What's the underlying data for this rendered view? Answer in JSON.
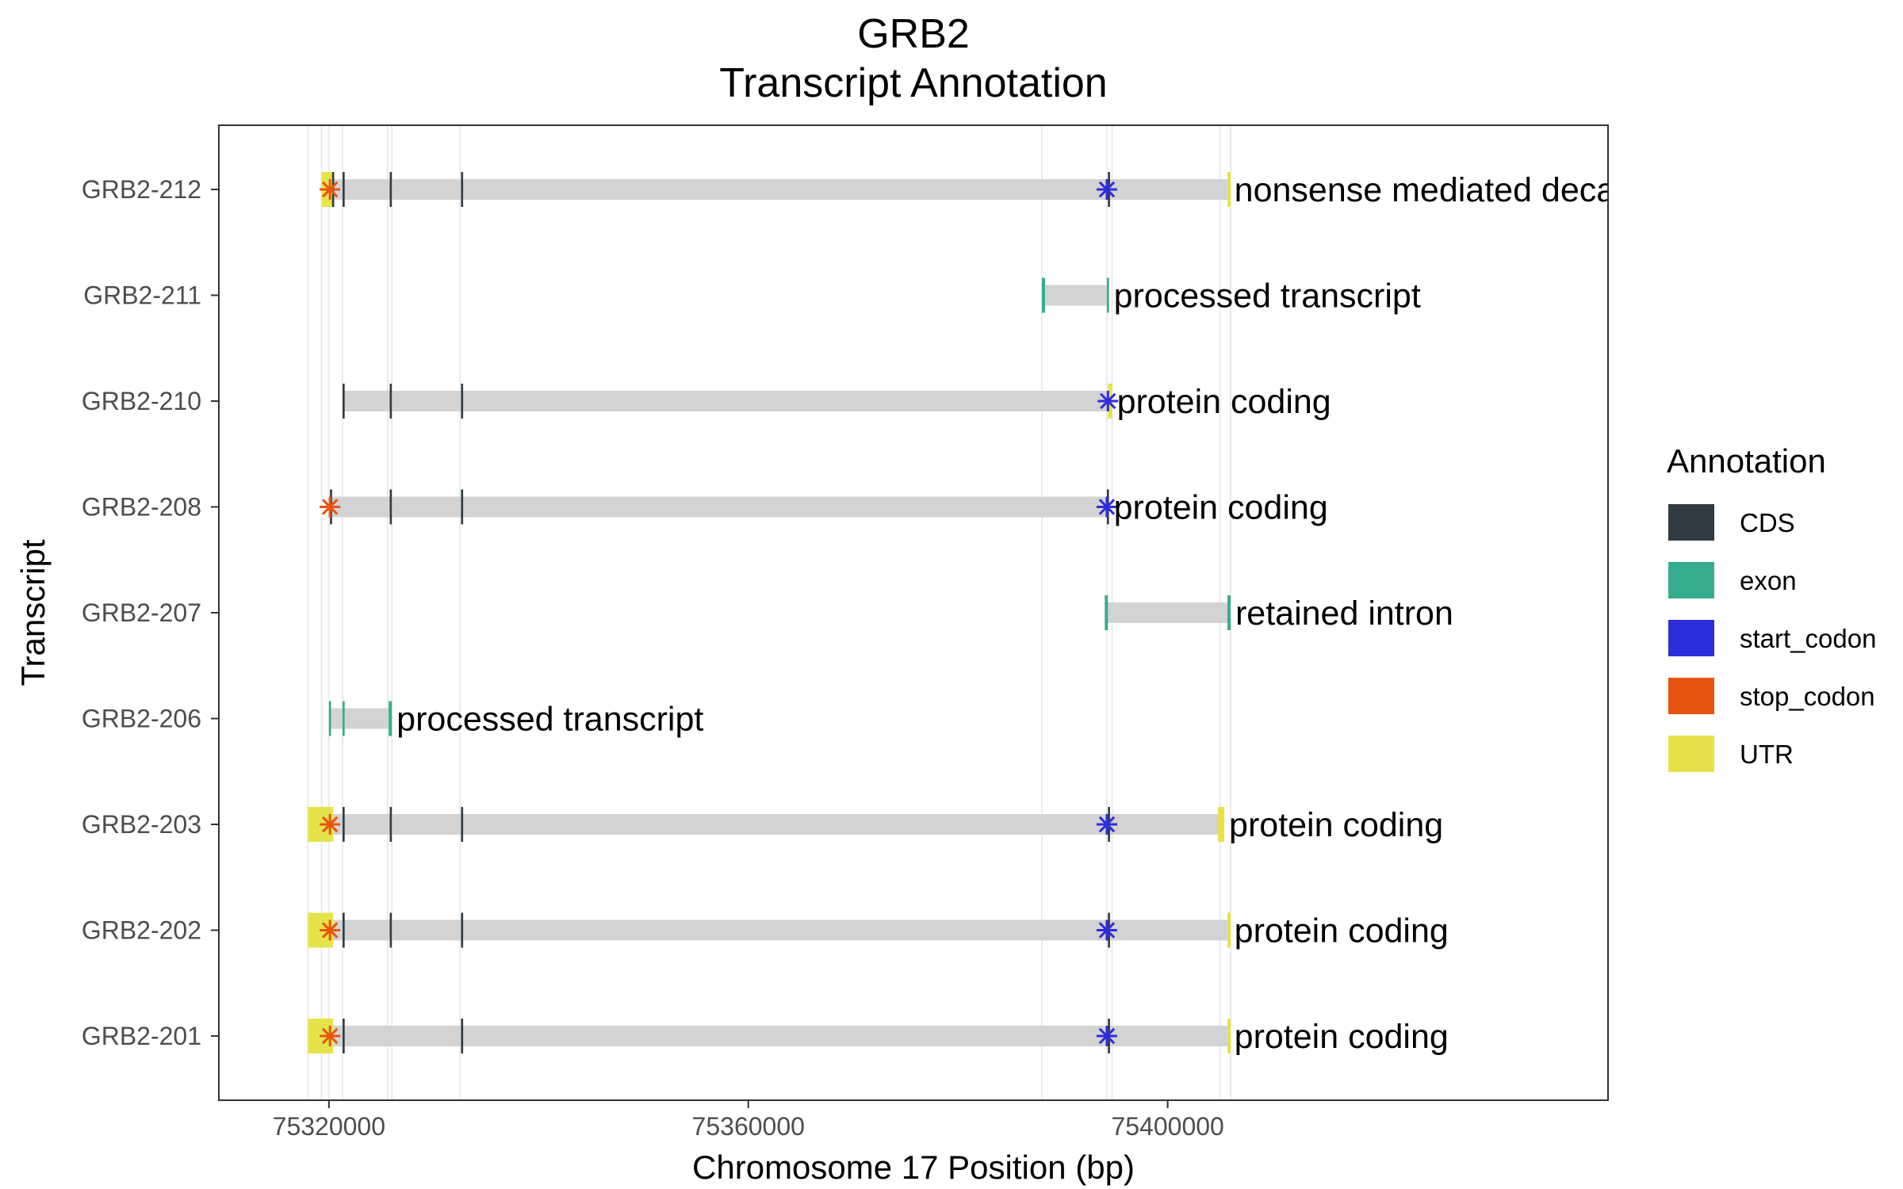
{
  "chart_data": {
    "type": "gene-track",
    "title": "GRB2",
    "subtitle": "Transcript Annotation",
    "xlabel": "Chromosome 17 Position (bp)",
    "ylabel": "Transcript",
    "xlim": [
      75309500,
      75442000
    ],
    "x_ticks": [
      "75320000",
      "75360000",
      "75400000"
    ],
    "x_tick_values": [
      75320000,
      75360000,
      75400000
    ],
    "grid_major_x": [
      75318000,
      75319300,
      75320000,
      75321300,
      75325600,
      75326000,
      75332500,
      75388000,
      75394200,
      75394700,
      75405000,
      75406000
    ],
    "legend": {
      "title": "Annotation",
      "placement": "right",
      "items": [
        {
          "label": "CDS",
          "color": "#2F3C45"
        },
        {
          "label": "exon",
          "color": "#35AD8F"
        },
        {
          "label": "start_codon",
          "color": "#2D2DDB"
        },
        {
          "label": "stop_codon",
          "color": "#E8550F"
        },
        {
          "label": "UTR",
          "color": "#E6E34A"
        }
      ]
    },
    "transcripts": [
      {
        "name": "GRB2-212",
        "biotype": "nonsense mediated decay",
        "start": 75319300,
        "end": 75405900,
        "features": [
          {
            "type": "UTR",
            "start": 75319300,
            "end": 75320400
          },
          {
            "type": "CDS",
            "start": 75320300,
            "end": 75320500
          },
          {
            "type": "CDS",
            "start": 75321300,
            "end": 75321500
          },
          {
            "type": "CDS",
            "start": 75325800,
            "end": 75326000
          },
          {
            "type": "CDS",
            "start": 75332600,
            "end": 75332800
          },
          {
            "type": "CDS",
            "start": 75394300,
            "end": 75394500
          },
          {
            "type": "UTR",
            "start": 75405700,
            "end": 75405900
          }
        ],
        "stop_codon": 75320100,
        "start_codon": 75394200
      },
      {
        "name": "GRB2-211",
        "biotype": "processed transcript",
        "start": 75388000,
        "end": 75394400,
        "features": [
          {
            "type": "exon",
            "start": 75388000,
            "end": 75388300
          },
          {
            "type": "exon",
            "start": 75394200,
            "end": 75394400
          }
        ]
      },
      {
        "name": "GRB2-210",
        "biotype": "protein coding",
        "start": 75321300,
        "end": 75394700,
        "features": [
          {
            "type": "CDS",
            "start": 75321300,
            "end": 75321500
          },
          {
            "type": "CDS",
            "start": 75325800,
            "end": 75326000
          },
          {
            "type": "CDS",
            "start": 75332600,
            "end": 75332800
          },
          {
            "type": "UTR",
            "start": 75394300,
            "end": 75394700
          }
        ],
        "start_codon": 75394300
      },
      {
        "name": "GRB2-208",
        "biotype": "protein coding",
        "start": 75320000,
        "end": 75394400,
        "features": [
          {
            "type": "CDS",
            "start": 75320100,
            "end": 75320300
          },
          {
            "type": "CDS",
            "start": 75325800,
            "end": 75326000
          },
          {
            "type": "CDS",
            "start": 75332600,
            "end": 75332800
          },
          {
            "type": "CDS",
            "start": 75394200,
            "end": 75394400
          }
        ],
        "stop_codon": 75320100,
        "start_codon": 75394200
      },
      {
        "name": "GRB2-207",
        "biotype": "retained intron",
        "start": 75394000,
        "end": 75406000,
        "features": [
          {
            "type": "exon",
            "start": 75394000,
            "end": 75394300
          },
          {
            "type": "exon",
            "start": 75405700,
            "end": 75406000
          }
        ]
      },
      {
        "name": "GRB2-206",
        "biotype": "processed transcript",
        "start": 75320000,
        "end": 75326000,
        "features": [
          {
            "type": "exon",
            "start": 75320000,
            "end": 75320200
          },
          {
            "type": "exon",
            "start": 75321300,
            "end": 75321500
          },
          {
            "type": "exon",
            "start": 75325700,
            "end": 75326000
          }
        ]
      },
      {
        "name": "GRB2-203",
        "biotype": "protein coding",
        "start": 75318000,
        "end": 75405400,
        "features": [
          {
            "type": "UTR",
            "start": 75318000,
            "end": 75320400
          },
          {
            "type": "CDS",
            "start": 75321300,
            "end": 75321500
          },
          {
            "type": "CDS",
            "start": 75325800,
            "end": 75326000
          },
          {
            "type": "CDS",
            "start": 75332600,
            "end": 75332800
          },
          {
            "type": "CDS",
            "start": 75394300,
            "end": 75394500
          },
          {
            "type": "UTR",
            "start": 75404800,
            "end": 75405400
          }
        ],
        "stop_codon": 75320100,
        "start_codon": 75394200
      },
      {
        "name": "GRB2-202",
        "biotype": "protein coding",
        "start": 75318000,
        "end": 75405900,
        "features": [
          {
            "type": "UTR",
            "start": 75318000,
            "end": 75320400
          },
          {
            "type": "CDS",
            "start": 75321300,
            "end": 75321500
          },
          {
            "type": "CDS",
            "start": 75325800,
            "end": 75326000
          },
          {
            "type": "CDS",
            "start": 75332600,
            "end": 75332800
          },
          {
            "type": "CDS",
            "start": 75394300,
            "end": 75394500
          },
          {
            "type": "UTR",
            "start": 75405700,
            "end": 75405900
          }
        ],
        "stop_codon": 75320100,
        "start_codon": 75394200
      },
      {
        "name": "GRB2-201",
        "biotype": "protein coding",
        "start": 75318000,
        "end": 75405900,
        "features": [
          {
            "type": "UTR",
            "start": 75318000,
            "end": 75320400
          },
          {
            "type": "CDS",
            "start": 75321300,
            "end": 75321500
          },
          {
            "type": "CDS",
            "start": 75332600,
            "end": 75332800
          },
          {
            "type": "CDS",
            "start": 75394300,
            "end": 75394500
          },
          {
            "type": "UTR",
            "start": 75405700,
            "end": 75405900
          }
        ],
        "stop_codon": 75320100,
        "start_codon": 75394200
      }
    ]
  }
}
